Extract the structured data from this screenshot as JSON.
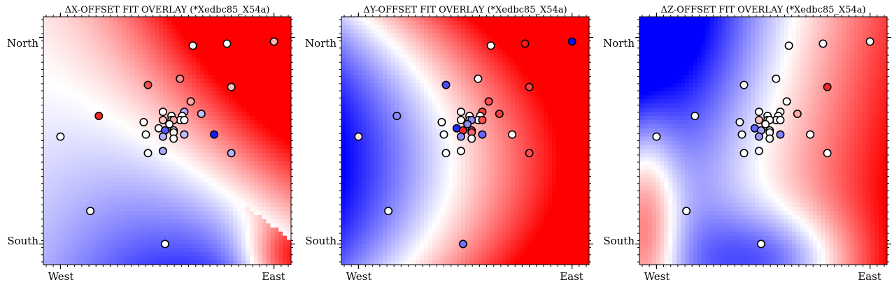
{
  "chart_data": [
    {
      "type": "scatter",
      "title": "ΔX-OFFSET FIT OVERLAY (*Xedbc85_X54a)",
      "xlabel": "",
      "ylabel": "",
      "x_tick_labels": [
        "West",
        "East"
      ],
      "y_tick_labels": [
        "North",
        "South"
      ],
      "xlim": [
        -0.08,
        1.08
      ],
      "ylim": [
        -0.1,
        1.1
      ],
      "color_range": [
        -1,
        1
      ],
      "background_field": "diagonal gradient: red top-left, white band, blue center-right, white bottom-right",
      "points": [
        {
          "x": 0.0,
          "y": 0.52,
          "v": 0.0
        },
        {
          "x": 0.18,
          "y": 0.62,
          "v": 0.85
        },
        {
          "x": 0.14,
          "y": 0.16,
          "v": 0.0
        },
        {
          "x": 0.41,
          "y": 0.44,
          "v": 0.0
        },
        {
          "x": 0.49,
          "y": 0.0,
          "v": 0.0
        },
        {
          "x": 0.62,
          "y": 0.96,
          "v": 0.0
        },
        {
          "x": 0.78,
          "y": 0.97,
          "v": 0.0
        },
        {
          "x": 1.0,
          "y": 0.98,
          "v": 0.3
        },
        {
          "x": 0.56,
          "y": 0.8,
          "v": 0.45
        },
        {
          "x": 0.41,
          "y": 0.77,
          "v": 0.7
        },
        {
          "x": 0.8,
          "y": 0.76,
          "v": 0.25
        },
        {
          "x": 0.61,
          "y": 0.69,
          "v": 0.35
        },
        {
          "x": 0.48,
          "y": 0.64,
          "v": 0.0
        },
        {
          "x": 0.58,
          "y": 0.64,
          "v": -0.3
        },
        {
          "x": 0.66,
          "y": 0.63,
          "v": -0.25
        },
        {
          "x": 0.52,
          "y": 0.62,
          "v": 0.0
        },
        {
          "x": 0.57,
          "y": 0.62,
          "v": 0.0
        },
        {
          "x": 0.52,
          "y": 0.6,
          "v": 0.0
        },
        {
          "x": 0.56,
          "y": 0.6,
          "v": 0.0
        },
        {
          "x": 0.58,
          "y": 0.6,
          "v": 0.0
        },
        {
          "x": 0.48,
          "y": 0.6,
          "v": 0.25
        },
        {
          "x": 0.53,
          "y": 0.6,
          "v": 0.35
        },
        {
          "x": 0.39,
          "y": 0.59,
          "v": 0.0
        },
        {
          "x": 0.51,
          "y": 0.58,
          "v": 0.0
        },
        {
          "x": 0.46,
          "y": 0.56,
          "v": 0.0
        },
        {
          "x": 0.49,
          "y": 0.55,
          "v": -0.65
        },
        {
          "x": 0.53,
          "y": 0.55,
          "v": 0.0
        },
        {
          "x": 0.53,
          "y": 0.54,
          "v": 0.0
        },
        {
          "x": 0.4,
          "y": 0.53,
          "v": 0.0
        },
        {
          "x": 0.48,
          "y": 0.52,
          "v": -0.3
        },
        {
          "x": 0.58,
          "y": 0.53,
          "v": -0.25
        },
        {
          "x": 0.53,
          "y": 0.51,
          "v": 0.0
        },
        {
          "x": 0.72,
          "y": 0.53,
          "v": -0.9
        },
        {
          "x": 0.48,
          "y": 0.45,
          "v": -0.35
        },
        {
          "x": 0.8,
          "y": 0.44,
          "v": -0.3
        }
      ]
    },
    {
      "type": "scatter",
      "title": "ΔY-OFFSET FIT OVERLAY (*Xedbc85_X54a)",
      "xlabel": "",
      "ylabel": "",
      "x_tick_labels": [
        "West",
        "East"
      ],
      "y_tick_labels": [
        "North",
        "South"
      ],
      "xlim": [
        -0.08,
        1.08
      ],
      "ylim": [
        -0.1,
        1.1
      ],
      "color_range": [
        -1,
        1
      ],
      "background_field": "blue on left and bottom, white curved band, red on right",
      "points": [
        {
          "x": 0.0,
          "y": 0.52,
          "v": 0.1
        },
        {
          "x": 0.18,
          "y": 0.62,
          "v": -0.45
        },
        {
          "x": 0.14,
          "y": 0.16,
          "v": 0.0
        },
        {
          "x": 0.41,
          "y": 0.44,
          "v": 0.0
        },
        {
          "x": 0.49,
          "y": 0.0,
          "v": -0.55
        },
        {
          "x": 0.62,
          "y": 0.96,
          "v": 0.0
        },
        {
          "x": 0.78,
          "y": 0.97,
          "v": 0.9
        },
        {
          "x": 1.0,
          "y": 0.98,
          "v": -0.95
        },
        {
          "x": 0.56,
          "y": 0.8,
          "v": 0.0
        },
        {
          "x": 0.41,
          "y": 0.77,
          "v": -0.7
        },
        {
          "x": 0.8,
          "y": 0.76,
          "v": 0.75
        },
        {
          "x": 0.61,
          "y": 0.69,
          "v": 0.7
        },
        {
          "x": 0.48,
          "y": 0.64,
          "v": 0.0
        },
        {
          "x": 0.58,
          "y": 0.64,
          "v": 0.75
        },
        {
          "x": 0.66,
          "y": 0.63,
          "v": 0.75
        },
        {
          "x": 0.52,
          "y": 0.62,
          "v": 0.0
        },
        {
          "x": 0.57,
          "y": 0.62,
          "v": 0.0
        },
        {
          "x": 0.52,
          "y": 0.6,
          "v": 0.0
        },
        {
          "x": 0.56,
          "y": 0.6,
          "v": 0.0
        },
        {
          "x": 0.58,
          "y": 0.6,
          "v": 0.7
        },
        {
          "x": 0.48,
          "y": 0.6,
          "v": 0.0
        },
        {
          "x": 0.53,
          "y": 0.6,
          "v": -0.45
        },
        {
          "x": 0.39,
          "y": 0.59,
          "v": 0.0
        },
        {
          "x": 0.51,
          "y": 0.58,
          "v": -0.45
        },
        {
          "x": 0.46,
          "y": 0.56,
          "v": -0.85
        },
        {
          "x": 0.49,
          "y": 0.55,
          "v": 0.85
        },
        {
          "x": 0.53,
          "y": 0.55,
          "v": 0.7
        },
        {
          "x": 0.53,
          "y": 0.54,
          "v": 0.6
        },
        {
          "x": 0.4,
          "y": 0.53,
          "v": 0.0
        },
        {
          "x": 0.48,
          "y": 0.52,
          "v": -0.45
        },
        {
          "x": 0.58,
          "y": 0.53,
          "v": -0.6
        },
        {
          "x": 0.53,
          "y": 0.51,
          "v": 0.0
        },
        {
          "x": 0.72,
          "y": 0.53,
          "v": 0.0
        },
        {
          "x": 0.48,
          "y": 0.45,
          "v": 0.0
        },
        {
          "x": 0.8,
          "y": 0.44,
          "v": 0.7
        }
      ]
    },
    {
      "type": "scatter",
      "title": "ΔZ-OFFSET FIT OVERLAY (*Xedbc85_X54a)",
      "xlabel": "",
      "ylabel": "",
      "x_tick_labels": [
        "West",
        "East"
      ],
      "y_tick_labels": [
        "North",
        "South"
      ],
      "xlim": [
        -0.08,
        1.08
      ],
      "ylim": [
        -0.1,
        1.1
      ],
      "color_range": [
        -1,
        1
      ],
      "background_field": "blue top-left and bottom, white band, red top-right and bottom-left",
      "points": [
        {
          "x": 0.0,
          "y": 0.52,
          "v": 0.0
        },
        {
          "x": 0.18,
          "y": 0.62,
          "v": 0.0
        },
        {
          "x": 0.14,
          "y": 0.16,
          "v": 0.0
        },
        {
          "x": 0.41,
          "y": 0.44,
          "v": 0.0
        },
        {
          "x": 0.49,
          "y": 0.0,
          "v": 0.0
        },
        {
          "x": 0.62,
          "y": 0.96,
          "v": 0.0
        },
        {
          "x": 0.78,
          "y": 0.97,
          "v": 0.0
        },
        {
          "x": 1.0,
          "y": 0.98,
          "v": 0.0
        },
        {
          "x": 0.56,
          "y": 0.8,
          "v": 0.0
        },
        {
          "x": 0.41,
          "y": 0.77,
          "v": 0.0
        },
        {
          "x": 0.8,
          "y": 0.76,
          "v": 0.85
        },
        {
          "x": 0.61,
          "y": 0.69,
          "v": 0.0
        },
        {
          "x": 0.48,
          "y": 0.64,
          "v": 0.0
        },
        {
          "x": 0.58,
          "y": 0.64,
          "v": 0.0
        },
        {
          "x": 0.66,
          "y": 0.63,
          "v": 0.35
        },
        {
          "x": 0.52,
          "y": 0.62,
          "v": 0.0
        },
        {
          "x": 0.57,
          "y": 0.62,
          "v": 0.0
        },
        {
          "x": 0.52,
          "y": 0.6,
          "v": 0.0
        },
        {
          "x": 0.56,
          "y": 0.6,
          "v": 0.0
        },
        {
          "x": 0.58,
          "y": 0.6,
          "v": 0.0
        },
        {
          "x": 0.48,
          "y": 0.6,
          "v": 0.25
        },
        {
          "x": 0.53,
          "y": 0.6,
          "v": 0.0
        },
        {
          "x": 0.39,
          "y": 0.59,
          "v": 0.0
        },
        {
          "x": 0.51,
          "y": 0.58,
          "v": 0.0
        },
        {
          "x": 0.46,
          "y": 0.56,
          "v": -0.6
        },
        {
          "x": 0.49,
          "y": 0.55,
          "v": -0.35
        },
        {
          "x": 0.53,
          "y": 0.55,
          "v": 0.0
        },
        {
          "x": 0.53,
          "y": 0.54,
          "v": 0.0
        },
        {
          "x": 0.4,
          "y": 0.53,
          "v": 0.0
        },
        {
          "x": 0.48,
          "y": 0.52,
          "v": -0.4
        },
        {
          "x": 0.58,
          "y": 0.53,
          "v": -0.5
        },
        {
          "x": 0.53,
          "y": 0.51,
          "v": 0.0
        },
        {
          "x": 0.72,
          "y": 0.53,
          "v": 0.0
        },
        {
          "x": 0.48,
          "y": 0.45,
          "v": 0.0
        },
        {
          "x": 0.8,
          "y": 0.44,
          "v": 0.0
        }
      ]
    }
  ]
}
